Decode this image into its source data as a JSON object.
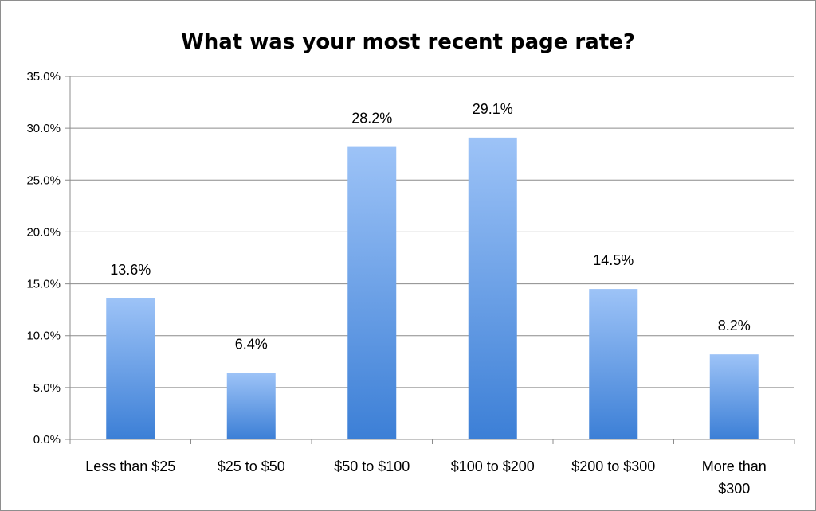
{
  "chart_data": {
    "type": "bar",
    "title": "What was your most recent page rate?",
    "categories": [
      "Less than $25",
      "$25 to $50",
      "$50 to $100",
      "$100 to $200",
      "$200 to $300",
      "More than $300"
    ],
    "category_lines": [
      [
        "Less than $25"
      ],
      [
        "$25 to $50"
      ],
      [
        "$50 to $100"
      ],
      [
        "$100 to $200"
      ],
      [
        "$200 to $300"
      ],
      [
        "More than",
        "$300"
      ]
    ],
    "values": [
      13.6,
      6.4,
      28.2,
      29.1,
      14.5,
      8.2
    ],
    "data_labels": [
      "13.6%",
      "6.4%",
      "28.2%",
      "29.1%",
      "14.5%",
      "8.2%"
    ],
    "ylim": [
      0,
      35
    ],
    "yticks": [
      0,
      5,
      10,
      15,
      20,
      25,
      30,
      35
    ],
    "ytick_labels": [
      "0.0%",
      "5.0%",
      "10.0%",
      "15.0%",
      "20.0%",
      "25.0%",
      "30.0%",
      "35.0%"
    ],
    "xlabel": "",
    "ylabel": "",
    "grid": true,
    "legend": "none",
    "colors": {
      "bar_top": "#9dc3f7",
      "bar_bottom": "#3c7fd6",
      "grid": "#8c8c8c"
    }
  }
}
